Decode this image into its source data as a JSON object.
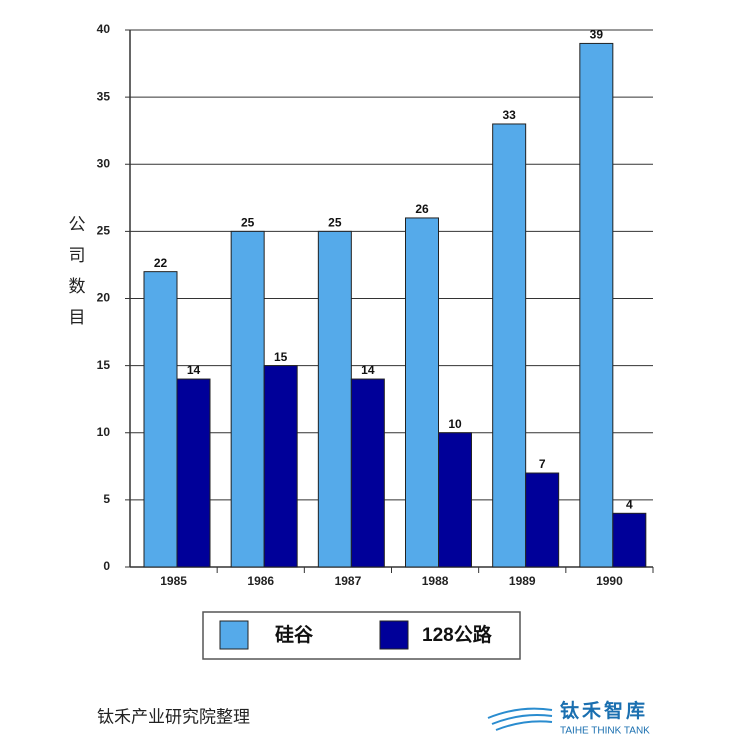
{
  "chart_data": {
    "type": "bar",
    "y_label": "公司数目",
    "categories": [
      "1985",
      "1986",
      "1987",
      "1988",
      "1989",
      "1990"
    ],
    "series": [
      {
        "name": "硅谷",
        "color": "#55aaea",
        "values": [
          22,
          25,
          25,
          26,
          33,
          39
        ]
      },
      {
        "name": "128公路",
        "color": "#000099",
        "values": [
          14,
          15,
          14,
          10,
          7,
          4
        ]
      }
    ],
    "ylim": [
      0,
      40
    ],
    "yticks": [
      0,
      5,
      10,
      15,
      20,
      25,
      30,
      35,
      40
    ],
    "grid": true
  },
  "footer": {
    "source": "钛禾产业研究院整理",
    "logo_name": "钛禾智库",
    "logo_english": "TAIHE THINK TANK"
  }
}
